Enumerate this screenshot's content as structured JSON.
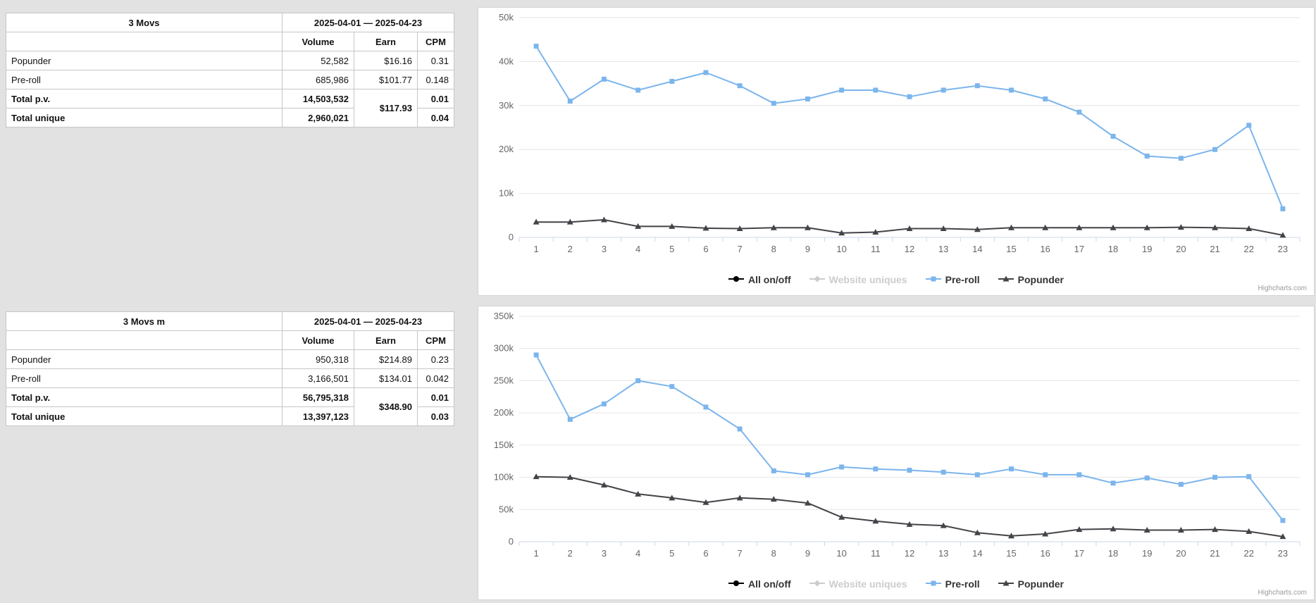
{
  "page": {
    "background": "#e2e2e2",
    "panel_border": "#d4d4d4"
  },
  "tables": [
    {
      "title": "3 Movs",
      "date_range": "2025-04-01 — 2025-04-23",
      "columns": [
        "Volume",
        "Earn",
        "CPM"
      ],
      "rows": [
        {
          "label": "Popunder",
          "volume": "52,582",
          "earn": "$16.16",
          "cpm": "0.31"
        },
        {
          "label": "Pre-roll",
          "volume": "685,986",
          "earn": "$101.77",
          "cpm": "0.148"
        }
      ],
      "totals": [
        {
          "label": "Total p.v.",
          "volume": "14,503,532",
          "cpm": "0.01"
        },
        {
          "label": "Total unique",
          "volume": "2,960,021",
          "cpm": "0.04"
        }
      ],
      "total_earn": "$117.93"
    },
    {
      "title": "3 Movs m",
      "date_range": "2025-04-01 — 2025-04-23",
      "columns": [
        "Volume",
        "Earn",
        "CPM"
      ],
      "rows": [
        {
          "label": "Popunder",
          "volume": "950,318",
          "earn": "$214.89",
          "cpm": "0.23"
        },
        {
          "label": "Pre-roll",
          "volume": "3,166,501",
          "earn": "$134.01",
          "cpm": "0.042"
        }
      ],
      "totals": [
        {
          "label": "Total p.v.",
          "volume": "56,795,318",
          "cpm": "0.01"
        },
        {
          "label": "Total unique",
          "volume": "13,397,123",
          "cpm": "0.03"
        }
      ],
      "total_earn": "$348.90"
    }
  ],
  "chart_data": [
    {
      "type": "line",
      "title": "",
      "categories": [
        "1",
        "2",
        "3",
        "4",
        "5",
        "6",
        "7",
        "8",
        "9",
        "10",
        "11",
        "12",
        "13",
        "14",
        "15",
        "16",
        "17",
        "18",
        "19",
        "20",
        "21",
        "22",
        "23"
      ],
      "ylim": [
        0,
        50000
      ],
      "ytick": 10000,
      "grid": true,
      "legend_position": "bottom",
      "series": [
        {
          "name": "Pre-roll",
          "color": "#7cb5ec",
          "marker": "square",
          "values": [
            43500,
            31000,
            36000,
            33500,
            35500,
            37500,
            34500,
            30500,
            31500,
            33500,
            33500,
            32000,
            33500,
            34500,
            33500,
            31500,
            28500,
            23000,
            18500,
            18000,
            20000,
            25500,
            6500
          ]
        },
        {
          "name": "Popunder",
          "color": "#434348",
          "marker": "triangle",
          "values": [
            3500,
            3500,
            4000,
            2500,
            2500,
            2100,
            2000,
            2200,
            2200,
            1000,
            1200,
            2000,
            2000,
            1800,
            2200,
            2200,
            2200,
            2200,
            2200,
            2300,
            2200,
            2000,
            500
          ]
        }
      ],
      "legend": [
        {
          "label": "All on/off",
          "marker": "circle",
          "color": "#000000",
          "enabled": true
        },
        {
          "label": "Website uniques",
          "marker": "diamond",
          "color": "#cccccc",
          "enabled": false
        },
        {
          "label": "Pre-roll",
          "marker": "square",
          "color": "#7cb5ec",
          "enabled": true
        },
        {
          "label": "Popunder",
          "marker": "triangle",
          "color": "#434348",
          "enabled": true
        }
      ],
      "credits": "Highcharts.com"
    },
    {
      "type": "line",
      "title": "",
      "categories": [
        "1",
        "2",
        "3",
        "4",
        "5",
        "6",
        "7",
        "8",
        "9",
        "10",
        "11",
        "12",
        "13",
        "14",
        "15",
        "16",
        "17",
        "18",
        "19",
        "20",
        "21",
        "22",
        "23"
      ],
      "ylim": [
        0,
        350000
      ],
      "ytick": 50000,
      "grid": true,
      "legend_position": "bottom",
      "series": [
        {
          "name": "Pre-roll",
          "color": "#7cb5ec",
          "marker": "square",
          "values": [
            290000,
            190000,
            214000,
            250000,
            241000,
            209000,
            175000,
            110000,
            104000,
            116000,
            113000,
            111000,
            108000,
            104000,
            113000,
            104000,
            104000,
            91000,
            99000,
            89000,
            100000,
            101000,
            33000
          ]
        },
        {
          "name": "Popunder",
          "color": "#434348",
          "marker": "triangle",
          "values": [
            101000,
            100000,
            88000,
            74000,
            68000,
            61000,
            68000,
            66000,
            60000,
            38000,
            32000,
            27000,
            25000,
            14000,
            9000,
            12000,
            19000,
            20000,
            18000,
            18000,
            19000,
            16000,
            8000
          ]
        }
      ],
      "legend": [
        {
          "label": "All on/off",
          "marker": "circle",
          "color": "#000000",
          "enabled": true
        },
        {
          "label": "Website uniques",
          "marker": "diamond",
          "color": "#cccccc",
          "enabled": false
        },
        {
          "label": "Pre-roll",
          "marker": "square",
          "color": "#7cb5ec",
          "enabled": true
        },
        {
          "label": "Popunder",
          "marker": "triangle",
          "color": "#434348",
          "enabled": true
        }
      ],
      "credits": "Highcharts.com"
    }
  ]
}
